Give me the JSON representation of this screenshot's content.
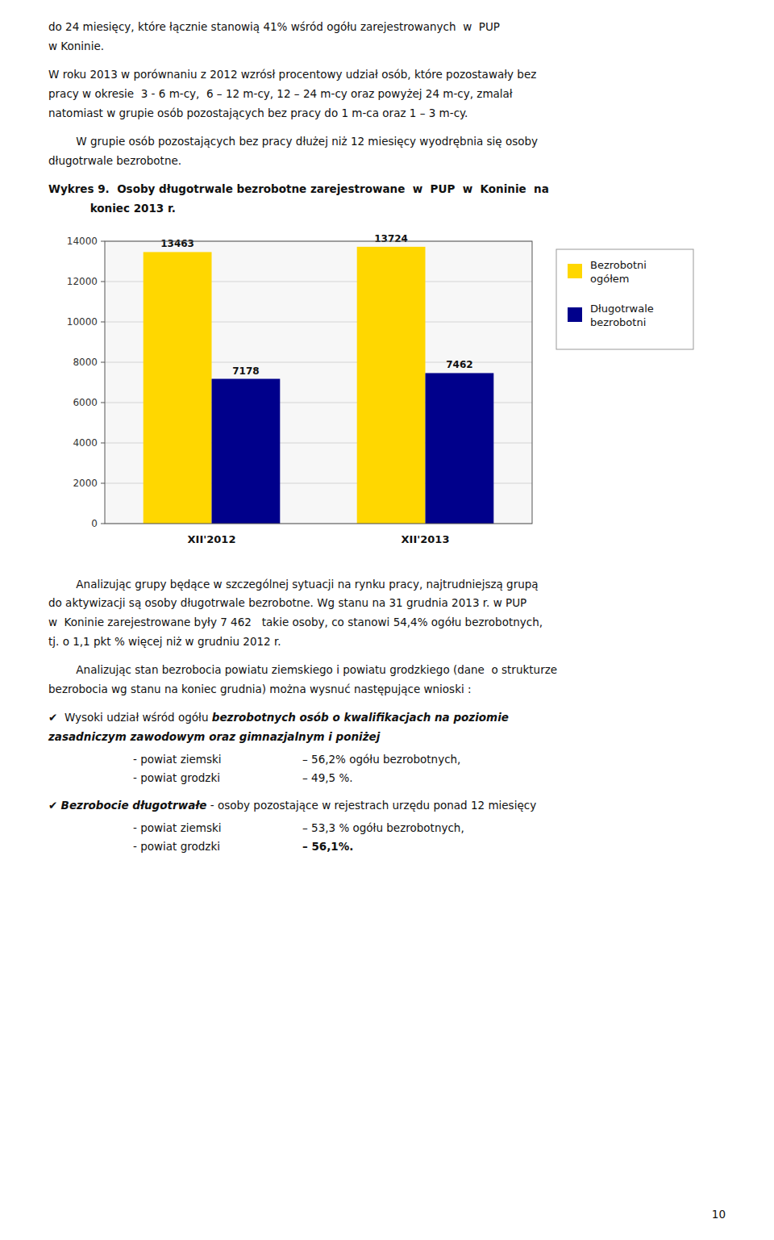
{
  "chart_data": {
    "type": "bar",
    "title": "Wykres 9.  Osoby długotrwale bezrobotne zarejestrowane  w  PUP  w  Koninie  na\n           koniec 2013 r.",
    "categories": [
      "XII'2012",
      "XII'2013"
    ],
    "series": [
      {
        "name": "Bezrobotni\nogółem",
        "color": "#FFD700",
        "values": [
          13463,
          13724
        ]
      },
      {
        "name": "Długotrwale\nbezrobotni",
        "color": "#00008B",
        "values": [
          7178,
          7462
        ]
      }
    ],
    "ylim": [
      0,
      14000
    ],
    "yticks": [
      0,
      2000,
      4000,
      6000,
      8000,
      10000,
      12000,
      14000
    ],
    "grid": true,
    "legend": "right",
    "data_labels": true
  },
  "page": {
    "before": [
      "do 24 miesięcy, które łącznie stanowią 41% wśród ogółu zarejestrowanych  w  PUP\nw Koninie.",
      "W roku 2013 w porównaniu z 2012 wzrósł procentowy udział osób, które pozostawały bez\npracy w okresie  3 - 6 m-cy,  6 – 12 m-cy, 12 – 24 m-cy oraz powyżej 24 m-cy, zmalał\nnatomiast w grupie osób pozostających bez pracy do 1 m-ca oraz 1 – 3 m-cy.",
      "        W grupie osób pozostających bez pracy dłużej niż 12 miesięcy wyodrębnia się osoby\ndługotrwale bezrobotne."
    ],
    "after": [
      "        Analizując grupy będące w szczególnej sytuacji na rynku pracy, najtrudniejszą grupą\ndo aktywizacji są osoby długotrwale bezrobotne. Wg stanu na 31 grudnia 2013 r. w PUP\nw  Koninie zarejestrowane były 7 462   takie osoby, co stanowi 54,4% ogółu bezrobotnych,\ntj. o 1,1 pkt % więcej niż w grudniu 2012 r.",
      "        Analizując stan bezrobocia powiatu ziemskiego i powiatu grodzkiego (dane  o strukturze\nbezrobocia wg stanu na koniec grudnia) można wysnuć następujące wnioski :"
    ],
    "bullets": [
      {
        "symbol": "✔",
        "parts": [
          {
            "text": " Wysoki udział wśród ogółu ",
            "bold": false
          },
          {
            "text": "bezrobotnych osób o kwalifikacjach na poziomie\nzasadniczym zawodowym oraz gimnazjalnym i poniżej",
            "bold": true
          }
        ],
        "items": [
          {
            "label": "- powiat ziemski",
            "value": "– 56,2% ogółu bezrobotnych,",
            "bold": false
          },
          {
            "label": "- powiat grodzki",
            "value": "– 49,5 %.",
            "bold": false
          }
        ]
      },
      {
        "symbol": "✔",
        "parts": [
          {
            "text": "Bezrobocie długotrwałe",
            "bold": true
          },
          {
            "text": " - osoby pozostające w rejestrach urzędu ponad 12 miesięcy",
            "bold": false
          }
        ],
        "items": [
          {
            "label": "- powiat ziemski",
            "value": "– 53,3 % ogółu bezrobotnych,",
            "bold": false
          },
          {
            "label": "- powiat grodzki",
            "value": "– 56,1%.",
            "bold": true
          }
        ]
      }
    ],
    "page_number": "10"
  }
}
